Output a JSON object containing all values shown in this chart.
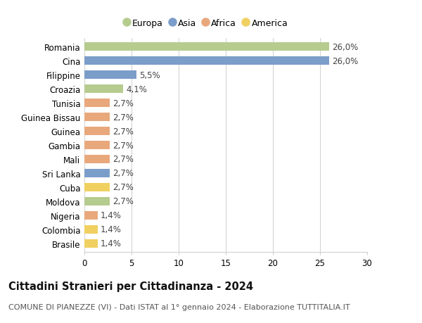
{
  "countries": [
    "Romania",
    "Cina",
    "Filippine",
    "Croazia",
    "Tunisia",
    "Guinea Bissau",
    "Guinea",
    "Gambia",
    "Mali",
    "Sri Lanka",
    "Cuba",
    "Moldova",
    "Nigeria",
    "Colombia",
    "Brasile"
  ],
  "values": [
    26.0,
    26.0,
    5.5,
    4.1,
    2.7,
    2.7,
    2.7,
    2.7,
    2.7,
    2.7,
    2.7,
    2.7,
    1.4,
    1.4,
    1.4
  ],
  "labels": [
    "26,0%",
    "26,0%",
    "5,5%",
    "4,1%",
    "2,7%",
    "2,7%",
    "2,7%",
    "2,7%",
    "2,7%",
    "2,7%",
    "2,7%",
    "2,7%",
    "1,4%",
    "1,4%",
    "1,4%"
  ],
  "continents": [
    "Europa",
    "Asia",
    "Asia",
    "Europa",
    "Africa",
    "Africa",
    "Africa",
    "Africa",
    "Africa",
    "Asia",
    "America",
    "Europa",
    "Africa",
    "America",
    "America"
  ],
  "continent_colors": {
    "Europa": "#b5cc8e",
    "Asia": "#7b9dc9",
    "Africa": "#e8a87c",
    "America": "#f0d060"
  },
  "legend_order": [
    "Europa",
    "Asia",
    "Africa",
    "America"
  ],
  "title": "Cittadini Stranieri per Cittadinanza - 2024",
  "subtitle": "COMUNE DI PIANEZZE (VI) - Dati ISTAT al 1° gennaio 2024 - Elaborazione TUTTITALIA.IT",
  "xlim": [
    0,
    30
  ],
  "xticks": [
    0,
    5,
    10,
    15,
    20,
    25,
    30
  ],
  "background_color": "#ffffff",
  "grid_color": "#d0d0d0",
  "bar_height": 0.6,
  "label_fontsize": 8.5,
  "ytick_fontsize": 8.5,
  "xtick_fontsize": 8.5,
  "title_fontsize": 10.5,
  "subtitle_fontsize": 8.0
}
